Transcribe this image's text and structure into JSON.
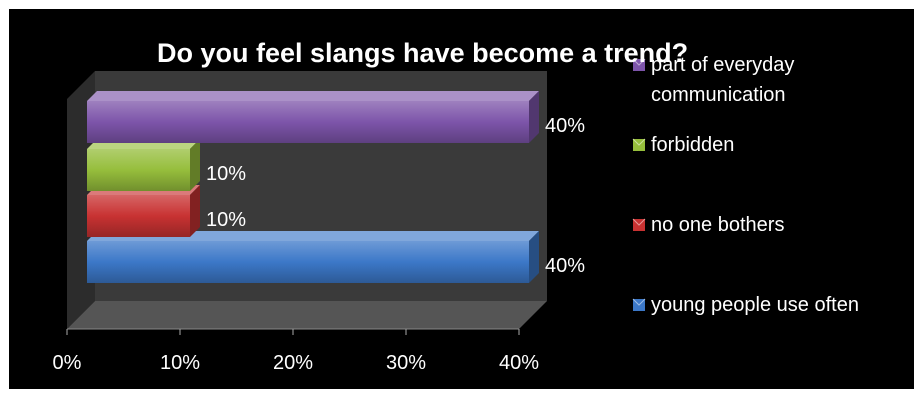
{
  "chart_data": {
    "type": "bar",
    "orientation": "horizontal",
    "three_d": true,
    "title": "Do you feel slangs have become a trend?",
    "categories": [
      "young people use often",
      "no one bothers",
      "forbidden",
      "part of everyday communication"
    ],
    "values": [
      40,
      10,
      10,
      40
    ],
    "value_unit": "%",
    "data_labels": [
      "40%",
      "10%",
      "10%",
      "40%"
    ],
    "colors": [
      "#3c78c8",
      "#c83232",
      "#96be3c",
      "#7d55aa"
    ],
    "x_ticks": [
      "0%",
      "10%",
      "20%",
      "30%",
      "40%"
    ],
    "xlim": [
      0,
      40
    ],
    "grid": false,
    "legend": {
      "position": "right",
      "entries": [
        {
          "lines": [
            "part of everyday",
            "communication"
          ],
          "color": "#7d55aa"
        },
        {
          "lines": [
            "forbidden"
          ],
          "color": "#96be3c"
        },
        {
          "lines": [
            "no one bothers"
          ],
          "color": "#c83232"
        },
        {
          "lines": [
            "young people use often"
          ],
          "color": "#3c78c8"
        }
      ]
    },
    "background": "#000000",
    "wall_color": "#3a3a3a",
    "floor_color": "#555555"
  }
}
